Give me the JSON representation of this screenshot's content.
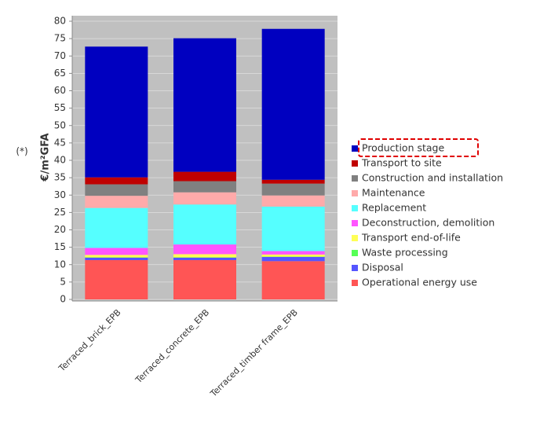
{
  "chart_data": {
    "type": "stacked_bar",
    "annotation": "(*)",
    "y_label": "€/m²GFA",
    "categories": [
      "Terraced_brick_EPB",
      "Terraced_concrete_EPB",
      "Terraced_timber frame_EPB"
    ],
    "series": [
      {
        "name": "Operational energy use",
        "color": "#ff5555",
        "values": [
          11.3,
          11.3,
          11.0
        ]
      },
      {
        "name": "Disposal",
        "color": "#5555ff",
        "values": [
          0.7,
          0.7,
          1.2
        ]
      },
      {
        "name": "Waste processing",
        "color": "#55ff55",
        "values": [
          0.1,
          0.1,
          0.1
        ]
      },
      {
        "name": "Transport end-of-life",
        "color": "#ffff55",
        "values": [
          0.7,
          0.9,
          0.6
        ]
      },
      {
        "name": "Deconstruction, demolition",
        "color": "#ff55ff",
        "values": [
          2.0,
          2.8,
          1.0
        ]
      },
      {
        "name": "Replacement",
        "color": "#55ffff",
        "values": [
          11.5,
          11.5,
          12.8
        ]
      },
      {
        "name": "Maintenance",
        "color": "#ffaaaa",
        "values": [
          3.5,
          3.5,
          3.2
        ]
      },
      {
        "name": "Construction and installation",
        "color": "#808080",
        "values": [
          3.3,
          3.2,
          3.4
        ]
      },
      {
        "name": "Transport to site",
        "color": "#c00000",
        "values": [
          2.0,
          2.7,
          1.1
        ]
      },
      {
        "name": "Production stage",
        "color": "#0000c0",
        "values": [
          37.6,
          38.4,
          43.4
        ]
      }
    ],
    "ylim": [
      0,
      80
    ],
    "yticks": [
      0,
      5,
      10,
      15,
      20,
      25,
      30,
      35,
      40,
      45,
      50,
      55,
      60,
      65,
      70,
      75,
      80
    ],
    "grid": true
  }
}
